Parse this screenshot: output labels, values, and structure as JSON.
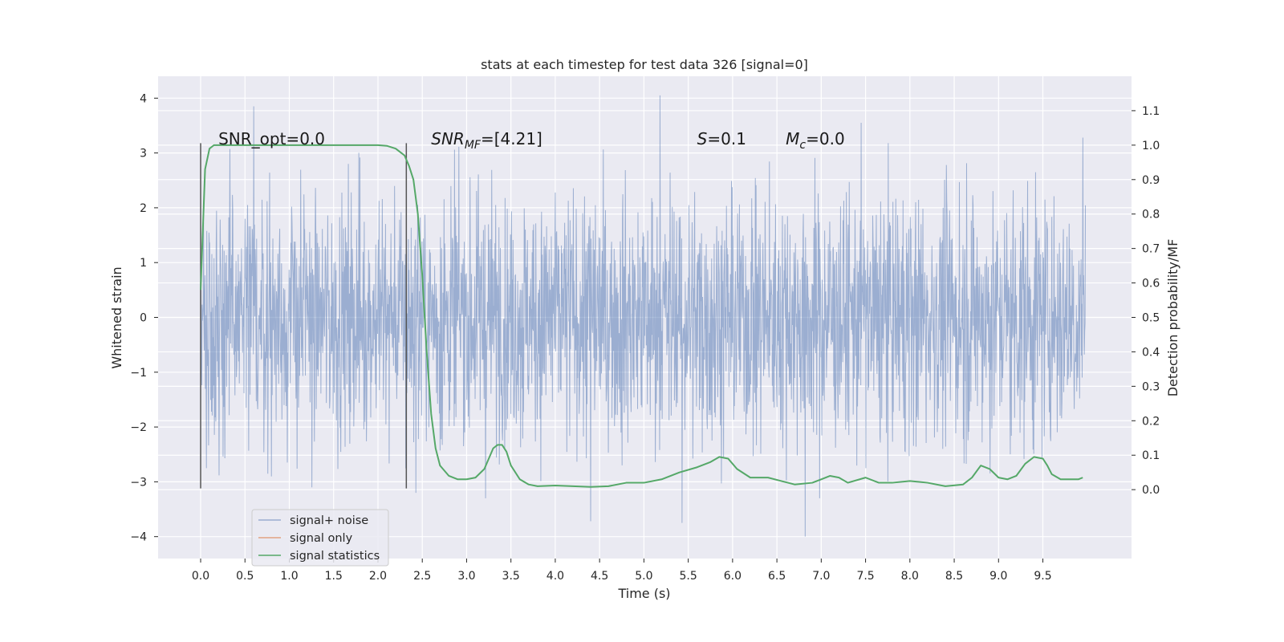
{
  "chart_data": {
    "type": "line",
    "title": "stats at each timestep for test data 326 [signal=0]",
    "xlabel": "Time (s)",
    "ylabel": "Whitened strain",
    "ylabel_right": "Detection probability/MF",
    "xlim": [
      -0.48,
      10.5
    ],
    "ylim": [
      -4.4,
      4.4
    ],
    "ylim_right": [
      -0.2,
      1.2
    ],
    "x_ticks": [
      "0.0",
      "0.5",
      "1.0",
      "1.5",
      "2.0",
      "2.5",
      "3.0",
      "3.5",
      "4.0",
      "4.5",
      "5.0",
      "5.5",
      "6.0",
      "6.5",
      "7.0",
      "7.5",
      "8.0",
      "8.5",
      "9.0",
      "9.5"
    ],
    "y_ticks": [
      "−4",
      "−3",
      "−2",
      "−1",
      "0",
      "1",
      "2",
      "3",
      "4"
    ],
    "y_ticks_right": [
      "0.0",
      "0.1",
      "0.2",
      "0.3",
      "0.4",
      "0.5",
      "0.6",
      "0.7",
      "0.8",
      "0.9",
      "1.0",
      "1.1"
    ],
    "grid": true,
    "background": "#eaeaf2",
    "annotations": {
      "snr_opt": {
        "prefix": "SNR_opt=",
        "value": "0.0",
        "x": 0.2
      },
      "snr_mf": {
        "base": "SNR",
        "sub": "MF",
        "suffix": "=[4.21]",
        "x": 2.6
      },
      "s": {
        "base": "S",
        "suffix": "=0.1",
        "x": 5.6
      },
      "mc": {
        "base": "M",
        "sub": "c",
        "suffix": "=0.0",
        "x": 6.6
      }
    },
    "vlines": [
      {
        "x": 0.0,
        "y_range": [
          -3.12,
          3.18
        ]
      },
      {
        "x": 2.32,
        "y_range": [
          -3.12,
          3.18
        ]
      }
    ],
    "series": [
      {
        "name": "signal+ noise",
        "color": "#4c72b0",
        "alpha": 0.5,
        "axis": "left",
        "x_range": [
          0.0,
          9.98
        ],
        "typical_range": [
          -1.3,
          1.3
        ],
        "max_peak": 4.05,
        "min_peak": -4.0
      },
      {
        "name": "signal only",
        "color": "#dd8452",
        "axis": "left",
        "values": []
      },
      {
        "name": "signal statistics",
        "color": "#55a868",
        "axis": "right",
        "x": [
          0.0,
          0.05,
          0.1,
          0.15,
          0.3,
          0.5,
          1.0,
          1.5,
          2.0,
          2.1,
          2.2,
          2.25,
          2.3,
          2.35,
          2.4,
          2.45,
          2.5,
          2.55,
          2.6,
          2.65,
          2.7,
          2.8,
          2.9,
          3.0,
          3.1,
          3.2,
          3.3,
          3.35,
          3.4,
          3.45,
          3.5,
          3.6,
          3.7,
          3.8,
          4.0,
          4.2,
          4.4,
          4.6,
          4.8,
          5.0,
          5.2,
          5.4,
          5.6,
          5.75,
          5.85,
          5.95,
          6.05,
          6.2,
          6.4,
          6.55,
          6.7,
          6.9,
          7.0,
          7.1,
          7.2,
          7.3,
          7.5,
          7.65,
          7.8,
          8.0,
          8.2,
          8.4,
          8.6,
          8.7,
          8.8,
          8.9,
          9.0,
          9.1,
          9.2,
          9.3,
          9.4,
          9.5,
          9.55,
          9.6,
          9.7,
          9.8,
          9.9,
          9.95
        ],
        "values": [
          0.58,
          0.93,
          0.99,
          1.0,
          1.0,
          1.0,
          1.0,
          1.0,
          1.0,
          0.998,
          0.99,
          0.98,
          0.97,
          0.94,
          0.9,
          0.8,
          0.62,
          0.4,
          0.22,
          0.12,
          0.07,
          0.04,
          0.03,
          0.03,
          0.035,
          0.06,
          0.12,
          0.13,
          0.13,
          0.11,
          0.07,
          0.03,
          0.015,
          0.01,
          0.012,
          0.01,
          0.008,
          0.01,
          0.02,
          0.02,
          0.03,
          0.05,
          0.065,
          0.08,
          0.095,
          0.09,
          0.06,
          0.035,
          0.035,
          0.025,
          0.015,
          0.02,
          0.03,
          0.04,
          0.035,
          0.02,
          0.035,
          0.02,
          0.02,
          0.025,
          0.02,
          0.01,
          0.015,
          0.035,
          0.07,
          0.06,
          0.035,
          0.03,
          0.04,
          0.075,
          0.095,
          0.09,
          0.07,
          0.045,
          0.03,
          0.03,
          0.03,
          0.035
        ]
      }
    ],
    "legend_placement": "lower-left"
  }
}
